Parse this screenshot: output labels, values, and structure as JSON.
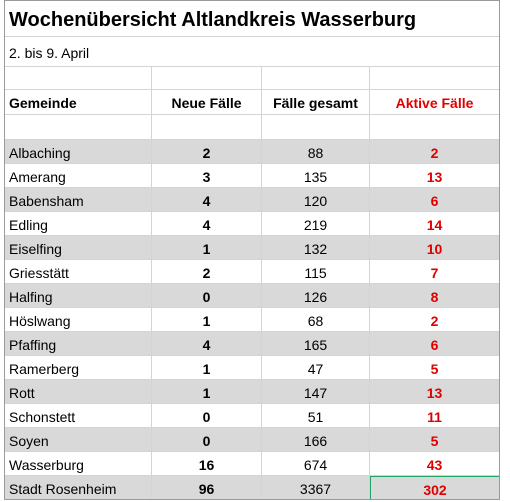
{
  "title": "Wochenübersicht Altlandkreis Wasserburg",
  "subtitle": "2. bis 9. April",
  "table": {
    "header": [
      "Gemeinde",
      "Neue Fälle",
      "Fälle gesamt",
      "Aktive Fälle"
    ],
    "rows": [
      [
        "Albaching",
        2,
        88,
        2
      ],
      [
        "Amerang",
        3,
        135,
        13
      ],
      [
        "Babensham",
        4,
        120,
        6
      ],
      [
        "Edling",
        4,
        219,
        14
      ],
      [
        "Eiselfing",
        1,
        132,
        10
      ],
      [
        "Griesstätt",
        2,
        115,
        7
      ],
      [
        "Halfing",
        0,
        126,
        8
      ],
      [
        "Höslwang",
        1,
        68,
        2
      ],
      [
        "Pfaffing",
        4,
        165,
        6
      ],
      [
        "Ramerberg",
        1,
        47,
        5
      ],
      [
        "Rott",
        1,
        147,
        13
      ],
      [
        "Schonstett",
        0,
        51,
        11
      ],
      [
        "Soyen",
        0,
        166,
        5
      ],
      [
        "Wasserburg",
        16,
        674,
        43
      ],
      [
        "Stadt Rosenheim",
        96,
        3367,
        302
      ]
    ]
  }
}
